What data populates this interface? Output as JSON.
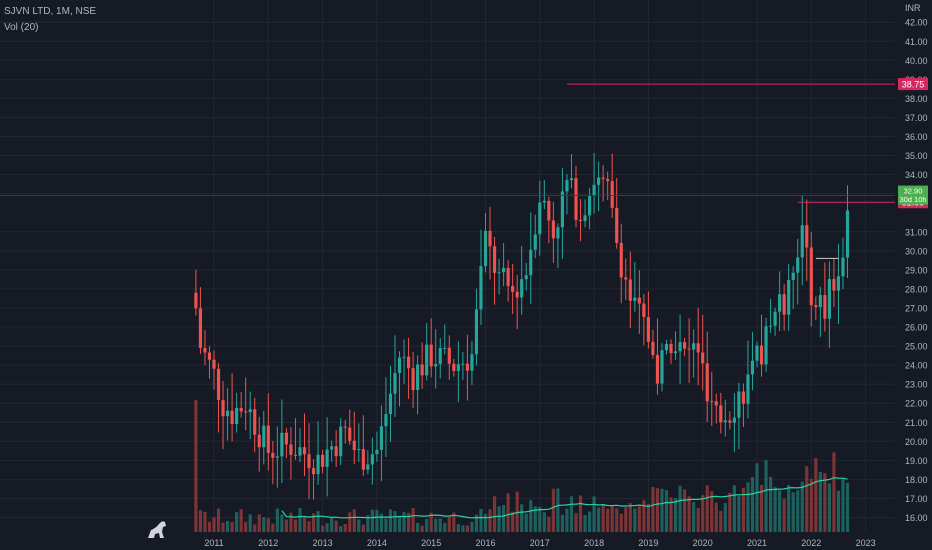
{
  "legend": {
    "title": "SJVN LTD, 1M, NSE",
    "volume": "Vol (20)"
  },
  "colors": {
    "bg": "#161a25",
    "up": "#26a69a",
    "down": "#ef5350",
    "grid": "#232732",
    "axis_text": "#b2b5be",
    "hline": "#d6285e",
    "last_price": "#4caf50",
    "ma_volume": "#2bd3a0"
  },
  "chart_data": {
    "type": "candlestick",
    "currency": "INR",
    "ylim": [
      15.4,
      42.4
    ],
    "y_ticks": [
      "42.00",
      "41.00",
      "40.00",
      "39.00",
      "38.00",
      "37.00",
      "36.00",
      "35.00",
      "34.00",
      "33.00",
      "31.00",
      "30.00",
      "29.00",
      "28.00",
      "27.00",
      "26.00",
      "25.00",
      "24.00",
      "23.00",
      "22.00",
      "21.00",
      "20.00",
      "19.00",
      "18.00",
      "17.00",
      "16.00"
    ],
    "x_ticks": [
      "2011",
      "2012",
      "2013",
      "2014",
      "2015",
      "2016",
      "2017",
      "2018",
      "2019",
      "2020",
      "2021",
      "2022",
      "2023"
    ],
    "price_labels": [
      {
        "text": "38.75",
        "value": 38.75,
        "color": "#d6285e"
      },
      {
        "text": "32.55",
        "value": 32.55,
        "color": "#d6285e"
      }
    ],
    "last_price_label": {
      "lines": [
        "32.90",
        "30d 10h"
      ],
      "value": 32.9,
      "color": "#4caf50"
    },
    "hlines": [
      {
        "value": 38.75,
        "from": "2017-07",
        "color": "#d6285e"
      },
      {
        "value": 32.55,
        "from": "2021-10",
        "color": "#d6285e"
      },
      {
        "value": 29.6,
        "from": "2022-02",
        "to": "2022-07",
        "color": "#cfcfcf"
      }
    ]
  }
}
